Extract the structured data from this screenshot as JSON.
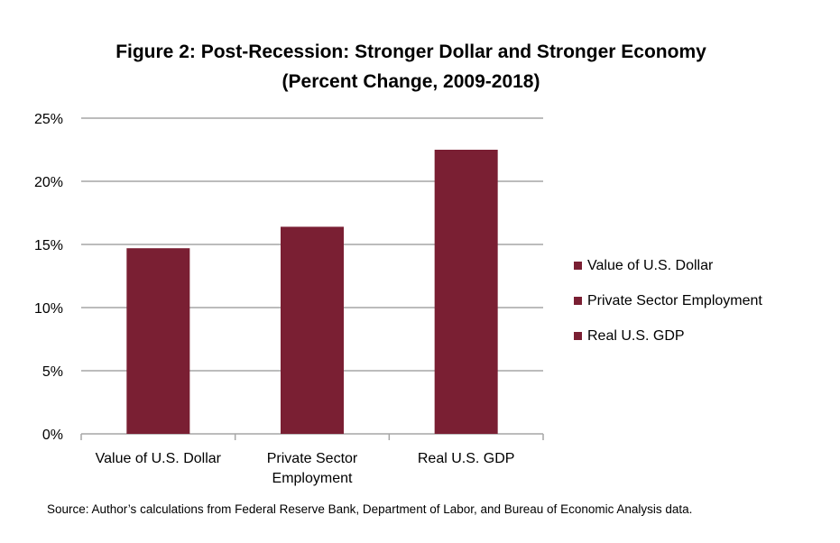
{
  "title": "Figure 2: Post-Recession: Stronger Dollar  and Stronger Economy",
  "subtitle": "(Percent Change, 2009-2018)",
  "source": "Source: Author’s calculations from Federal Reserve Bank, Department of Labor, and Bureau of Economic Analysis data.",
  "colors": {
    "bar": "#7a1f33",
    "grid": "#a6a6a6"
  },
  "chart_data": {
    "type": "bar",
    "categories": [
      "Value of U.S. Dollar",
      "Private Sector Employment",
      "Real U.S. GDP"
    ],
    "category_tick_labels": [
      [
        "Value of U.S. Dollar"
      ],
      [
        "Private Sector",
        "Employment"
      ],
      [
        "Real U.S. GDP"
      ]
    ],
    "values": [
      14.7,
      16.4,
      22.5
    ],
    "unit": "%",
    "ylim": [
      0,
      25
    ],
    "yticks": [
      0,
      5,
      10,
      15,
      20,
      25
    ],
    "ytick_labels": [
      "0%",
      "5%",
      "10%",
      "15%",
      "20%",
      "25%"
    ],
    "grid": true,
    "legend_position": "right",
    "legend": [
      "Value of U.S. Dollar",
      "Private Sector Employment",
      "Real U.S. GDP"
    ]
  }
}
